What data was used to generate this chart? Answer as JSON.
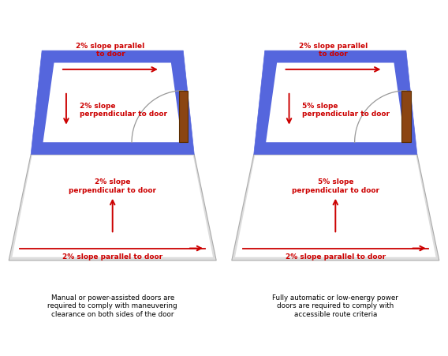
{
  "bg_color": "#ffffff",
  "blue_color": "#5566dd",
  "door_color": "#8B4513",
  "red_color": "#cc0000",
  "caption_color": "#000000",
  "frame_thickness": 0.55,
  "left_panel": {
    "parallel_top": "2% slope parallel\nto door",
    "perp_top": "2% slope\nperpendicular to door",
    "perp_bottom": "2% slope\nperpendicular to door",
    "parallel_bottom": "2% slope parallel to door",
    "caption": "Manual or power-assisted doors are\nrequired to comply with maneuvering\nclearance on both sides of the door"
  },
  "right_panel": {
    "parallel_top": "2% slope parallel\nto door",
    "perp_top": "5% slope\nperpendicular to door",
    "perp_bottom": "5% slope\nperpendicular to door",
    "parallel_bottom": "2% slope parallel to door",
    "caption": "Fully automatic or low-energy power\ndoors are required to comply with\naccessible route criteria"
  }
}
